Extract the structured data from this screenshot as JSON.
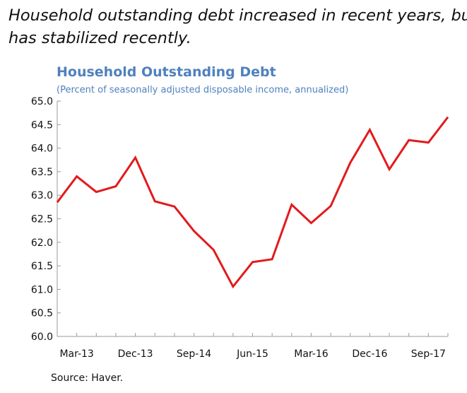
{
  "headline": {
    "line1": "Household outstanding debt increased in recent years, but",
    "line2": "has stabilized recently."
  },
  "source": "Source: Haver.",
  "colors": {
    "series": "#e31a1c",
    "title": "#4f81bd",
    "axis": "#9a9a9a"
  },
  "chart_data": {
    "type": "line",
    "title": "Household Outstanding Debt",
    "subtitle": "(Percent of seasonally adjusted disposable income, annualized)",
    "xlabel": "",
    "ylabel": "",
    "x_ticks": [
      "Mar-13",
      "Dec-13",
      "Sep-14",
      "Jun-15",
      "Mar-16",
      "Dec-16",
      "Sep-17"
    ],
    "x": [
      "2012Q4",
      "Mar-13",
      "Jun-13",
      "Sep-13",
      "Dec-13",
      "Mar-14",
      "Jun-14",
      "Sep-14",
      "Dec-14",
      "Mar-15",
      "Jun-15",
      "Sep-15",
      "Dec-15",
      "Mar-16",
      "Jun-16",
      "Sep-16",
      "Dec-16",
      "Mar-17",
      "Jun-17",
      "Sep-17",
      "Dec-17"
    ],
    "series": [
      {
        "name": "",
        "values": [
          62.85,
          63.4,
          63.07,
          63.19,
          63.8,
          62.87,
          62.76,
          62.24,
          61.84,
          61.06,
          61.58,
          61.64,
          62.8,
          62.41,
          62.77,
          63.69,
          64.39,
          63.55,
          64.17,
          64.12,
          64.66
        ]
      }
    ],
    "ylim": [
      60.0,
      65.0
    ],
    "y_ticks": [
      "60.0",
      "60.5",
      "61.0",
      "61.5",
      "62.0",
      "62.5",
      "63.0",
      "63.5",
      "64.0",
      "64.5",
      "65.0"
    ],
    "grid": false,
    "legend": "none"
  }
}
